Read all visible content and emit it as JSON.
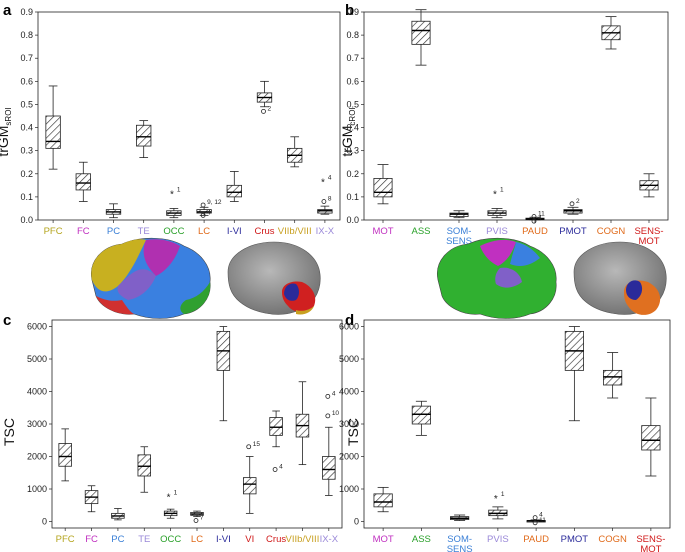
{
  "chart_data": [
    {
      "panel": "a",
      "type": "box",
      "ylabel": "trGM",
      "ylabel_sub": "sROI",
      "ylim": [
        0,
        0.9
      ],
      "yticks": [
        "0.0",
        "0.1",
        "0.2",
        "0.3",
        "0.4",
        "0.5",
        "0.6",
        "0.7",
        "0.8",
        "0.9"
      ],
      "categories": [
        {
          "label": "PFC",
          "color": "#b5a51f"
        },
        {
          "label": "FC",
          "color": "#c030c0"
        },
        {
          "label": "PC",
          "color": "#3a7fd6"
        },
        {
          "label": "TE",
          "color": "#9a88d8"
        },
        {
          "label": "OCC",
          "color": "#2aa02a"
        },
        {
          "label": "LC",
          "color": "#e06a1a"
        },
        {
          "label": "I-VI",
          "color": "#2a2a9a"
        },
        {
          "label": "Crus",
          "color": "#d01818"
        },
        {
          "label": "VIIb/VIII",
          "color": "#c8a020"
        },
        {
          "label": "IX-X",
          "color": "#9a88d8"
        }
      ],
      "boxes": [
        {
          "min": 0.22,
          "q1": 0.31,
          "med": 0.34,
          "q3": 0.45,
          "max": 0.58
        },
        {
          "min": 0.08,
          "q1": 0.13,
          "med": 0.16,
          "q3": 0.2,
          "max": 0.25
        },
        {
          "min": 0.01,
          "q1": 0.025,
          "med": 0.035,
          "q3": 0.045,
          "max": 0.07
        },
        {
          "min": 0.27,
          "q1": 0.32,
          "med": 0.36,
          "q3": 0.41,
          "max": 0.43
        },
        {
          "min": 0.01,
          "q1": 0.02,
          "med": 0.03,
          "q3": 0.04,
          "max": 0.05
        },
        {
          "min": 0.02,
          "q1": 0.03,
          "med": 0.035,
          "q3": 0.045,
          "max": 0.055
        },
        {
          "min": 0.08,
          "q1": 0.1,
          "med": 0.12,
          "q3": 0.15,
          "max": 0.21
        },
        {
          "min": 0.49,
          "q1": 0.51,
          "med": 0.53,
          "q3": 0.55,
          "max": 0.6
        },
        {
          "min": 0.23,
          "q1": 0.25,
          "med": 0.28,
          "q3": 0.31,
          "max": 0.36
        },
        {
          "min": 0.025,
          "q1": 0.03,
          "med": 0.04,
          "q3": 0.045,
          "max": 0.06
        }
      ],
      "outliers": [
        {
          "cat": 4,
          "value": 0.12,
          "kind": "star",
          "label": "1"
        },
        {
          "cat": 5,
          "value": 0.065,
          "kind": "circle",
          "label": "9, 12"
        },
        {
          "cat": 5,
          "value": 0.02,
          "kind": "circle",
          "label": "4"
        },
        {
          "cat": 7,
          "value": 0.47,
          "kind": "circle",
          "label": "2"
        },
        {
          "cat": 9,
          "value": 0.17,
          "kind": "star",
          "label": "4"
        },
        {
          "cat": 9,
          "value": 0.08,
          "kind": "circle",
          "label": "8"
        }
      ]
    },
    {
      "panel": "b",
      "type": "box",
      "ylabel": "trGM",
      "ylabel_sub": "cROI",
      "ylim": [
        0,
        0.9
      ],
      "yticks": [
        "0.0",
        "0.1",
        "0.2",
        "0.3",
        "0.4",
        "0.5",
        "0.6",
        "0.7",
        "0.8",
        "0.9"
      ],
      "categories": [
        {
          "label": "MOT",
          "color": "#c030c0"
        },
        {
          "label": "ASS",
          "color": "#2aa02a"
        },
        {
          "label": "SOM-\nSENS",
          "color": "#3a7fd6"
        },
        {
          "label": "PVIS",
          "color": "#9a88d8"
        },
        {
          "label": "PAUD",
          "color": "#e06a1a"
        },
        {
          "label": "PMOT",
          "color": "#2a2a9a"
        },
        {
          "label": "COGN",
          "color": "#e06a1a"
        },
        {
          "label": "SENS-\nMOT",
          "color": "#d01818"
        }
      ],
      "boxes": [
        {
          "min": 0.07,
          "q1": 0.1,
          "med": 0.12,
          "q3": 0.18,
          "max": 0.24
        },
        {
          "min": 0.67,
          "q1": 0.76,
          "med": 0.82,
          "q3": 0.86,
          "max": 0.91
        },
        {
          "min": 0.01,
          "q1": 0.015,
          "med": 0.025,
          "q3": 0.03,
          "max": 0.04
        },
        {
          "min": 0.01,
          "q1": 0.02,
          "med": 0.03,
          "q3": 0.04,
          "max": 0.05
        },
        {
          "min": 0.0,
          "q1": 0.002,
          "med": 0.004,
          "q3": 0.008,
          "max": 0.012
        },
        {
          "min": 0.025,
          "q1": 0.03,
          "med": 0.04,
          "q3": 0.045,
          "max": 0.055
        },
        {
          "min": 0.74,
          "q1": 0.78,
          "med": 0.81,
          "q3": 0.84,
          "max": 0.88
        },
        {
          "min": 0.1,
          "q1": 0.13,
          "med": 0.15,
          "q3": 0.17,
          "max": 0.2
        }
      ],
      "outliers": [
        {
          "cat": 3,
          "value": 0.12,
          "kind": "star",
          "label": "1"
        },
        {
          "cat": 4,
          "value": 0.015,
          "kind": "circle",
          "label": "11"
        },
        {
          "cat": 4,
          "value": -0.005,
          "kind": "circle",
          "label": "4"
        },
        {
          "cat": 5,
          "value": 0.07,
          "kind": "circle",
          "label": "2"
        }
      ]
    },
    {
      "panel": "c",
      "type": "box",
      "ylabel": "TSC",
      "ylabel_sub": "",
      "ylim": [
        -200,
        6200
      ],
      "yticks": [
        "0",
        "1000",
        "2000",
        "3000",
        "4000",
        "5000",
        "6000"
      ],
      "categories": [
        {
          "label": "PFC",
          "color": "#b5a51f"
        },
        {
          "label": "FC",
          "color": "#c030c0"
        },
        {
          "label": "PC",
          "color": "#3a7fd6"
        },
        {
          "label": "TE",
          "color": "#9a88d8"
        },
        {
          "label": "OCC",
          "color": "#2aa02a"
        },
        {
          "label": "LC",
          "color": "#e06a1a"
        },
        {
          "label": "I-VI",
          "color": "#2a2a9a"
        },
        {
          "label": "VI",
          "color": "#d01818"
        },
        {
          "label": "Crus",
          "color": "#d01818"
        },
        {
          "label": "VIIb/VIII",
          "color": "#c8a020"
        },
        {
          "label": "IX-X",
          "color": "#9a88d8"
        }
      ],
      "boxes": [
        {
          "min": 1250,
          "q1": 1700,
          "med": 2000,
          "q3": 2400,
          "max": 2850
        },
        {
          "min": 300,
          "q1": 550,
          "med": 750,
          "q3": 950,
          "max": 1100
        },
        {
          "min": 50,
          "q1": 100,
          "med": 170,
          "q3": 250,
          "max": 400
        },
        {
          "min": 900,
          "q1": 1400,
          "med": 1700,
          "q3": 2050,
          "max": 2300
        },
        {
          "min": 100,
          "q1": 180,
          "med": 250,
          "q3": 320,
          "max": 380
        },
        {
          "min": 150,
          "q1": 190,
          "med": 230,
          "q3": 280,
          "max": 320
        },
        {
          "min": 3100,
          "q1": 4650,
          "med": 5250,
          "q3": 5850,
          "max": 6000
        },
        {
          "min": 250,
          "q1": 850,
          "med": 1150,
          "q3": 1350,
          "max": 2000
        },
        {
          "min": 2300,
          "q1": 2650,
          "med": 2900,
          "q3": 3200,
          "max": 3400
        },
        {
          "min": 1750,
          "q1": 2600,
          "med": 2950,
          "q3": 3300,
          "max": 4300
        },
        {
          "min": 800,
          "q1": 1300,
          "med": 1600,
          "q3": 2000,
          "max": 2900
        }
      ],
      "outliers": [
        {
          "cat": 4,
          "value": 800,
          "kind": "star",
          "label": "1"
        },
        {
          "cat": 5,
          "value": 30,
          "kind": "circle",
          "label": "7"
        },
        {
          "cat": 7,
          "value": 2300,
          "kind": "circle",
          "label": "15"
        },
        {
          "cat": 8,
          "value": 1600,
          "kind": "circle",
          "label": "4"
        },
        {
          "cat": 10,
          "value": 3850,
          "kind": "circle",
          "label": "4"
        },
        {
          "cat": 10,
          "value": 3250,
          "kind": "circle",
          "label": "10"
        }
      ]
    },
    {
      "panel": "d",
      "type": "box",
      "ylabel": "TSC",
      "ylabel_sub": "",
      "ylim": [
        -200,
        6200
      ],
      "yticks": [
        "0",
        "1000",
        "2000",
        "3000",
        "4000",
        "5000",
        "6000"
      ],
      "categories": [
        {
          "label": "MOT",
          "color": "#c030c0"
        },
        {
          "label": "ASS",
          "color": "#2aa02a"
        },
        {
          "label": "SOM-\nSENS",
          "color": "#3a7fd6"
        },
        {
          "label": "PVIS",
          "color": "#9a88d8"
        },
        {
          "label": "PAUD",
          "color": "#e06a1a"
        },
        {
          "label": "PMOT",
          "color": "#2a2a9a"
        },
        {
          "label": "COGN",
          "color": "#e06a1a"
        },
        {
          "label": "SENS-\nMOT",
          "color": "#d01818"
        }
      ],
      "boxes": [
        {
          "min": 300,
          "q1": 450,
          "med": 600,
          "q3": 850,
          "max": 1050
        },
        {
          "min": 2650,
          "q1": 3000,
          "med": 3300,
          "q3": 3550,
          "max": 3700
        },
        {
          "min": 30,
          "q1": 60,
          "med": 100,
          "q3": 150,
          "max": 200
        },
        {
          "min": 80,
          "q1": 180,
          "med": 250,
          "q3": 350,
          "max": 450
        },
        {
          "min": 0,
          "q1": 10,
          "med": 20,
          "q3": 30,
          "max": 50
        },
        {
          "min": 3100,
          "q1": 4650,
          "med": 5250,
          "q3": 5850,
          "max": 6000
        },
        {
          "min": 3800,
          "q1": 4200,
          "med": 4450,
          "q3": 4650,
          "max": 5200
        },
        {
          "min": 1400,
          "q1": 2200,
          "med": 2500,
          "q3": 2950,
          "max": 3800
        }
      ],
      "outliers": [
        {
          "cat": 3,
          "value": 750,
          "kind": "star",
          "label": "1"
        },
        {
          "cat": 4,
          "value": 120,
          "kind": "circle",
          "label": "4"
        },
        {
          "cat": 4,
          "value": -40,
          "kind": "circle",
          "label": "11"
        }
      ]
    }
  ],
  "brains": [
    {
      "name": "cerebrum-parcellation-left",
      "colors": [
        "#c8b020",
        "#b030b0",
        "#3a80e0",
        "#8060c8",
        "#30a030"
      ]
    },
    {
      "name": "cerebellum-parcellation-left",
      "colors": [
        "#2a2a9a",
        "#d02020",
        "#c8a020"
      ]
    },
    {
      "name": "cerebrum-parcellation-right",
      "colors": [
        "#c030c0",
        "#30b030",
        "#3a80e0",
        "#8060c8"
      ]
    },
    {
      "name": "cerebellum-parcellation-right",
      "colors": [
        "#2a2a9a",
        "#e07020"
      ]
    }
  ]
}
